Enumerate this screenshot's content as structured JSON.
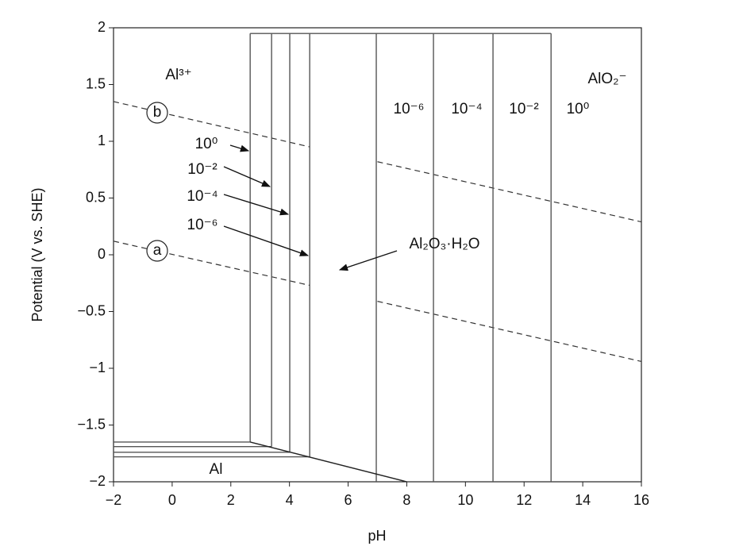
{
  "chart_data": {
    "type": "line",
    "x_label": "pH",
    "y_label": "Potential (V vs. SHE)",
    "xlim": [
      -2,
      16
    ],
    "ylim": [
      -2,
      2
    ],
    "xticks": [
      {
        "value": -2,
        "label": "−2"
      },
      0,
      2,
      4,
      6,
      8,
      10,
      12,
      14,
      16
    ],
    "yticks": [
      {
        "value": -2,
        "label": "−2"
      },
      {
        "value": -1.5,
        "label": "−1.5"
      },
      {
        "value": -1,
        "label": "−1"
      },
      {
        "value": -0.5,
        "label": "−0.5"
      },
      0,
      0.5,
      1,
      1.5,
      2
    ],
    "series": [
      {
        "x": [
          -2,
          4.7,
          5.8,
          7,
          16
        ],
        "values": [
          1.35,
          0.95,
          null,
          0.82,
          0.29
        ],
        "color": "#333333",
        "dash": true
      },
      {
        "x": [
          -2,
          4.7,
          5.8,
          7,
          16
        ],
        "values": [
          0.12,
          -0.27,
          null,
          -0.41,
          -0.94
        ],
        "color": "#333333",
        "dash": true
      },
      {
        "x": [
          2.66,
          2.66
        ],
        "values": [
          -1.65,
          1.95
        ],
        "color": "#555555",
        "dash": false
      },
      {
        "x": [
          3.39,
          3.39
        ],
        "values": [
          -1.69,
          1.95
        ],
        "color": "#555555",
        "dash": false
      },
      {
        "x": [
          4.01,
          4.01
        ],
        "values": [
          -1.74,
          1.95
        ],
        "color": "#555555",
        "dash": false
      },
      {
        "x": [
          4.69,
          4.69
        ],
        "values": [
          -1.78,
          1.95
        ],
        "color": "#555555",
        "dash": false
      },
      {
        "x": [
          6.96,
          6.96
        ],
        "values": [
          -2,
          1.95
        ],
        "color": "#555555",
        "dash": false
      },
      {
        "x": [
          8.91,
          8.91
        ],
        "values": [
          -2,
          1.95
        ],
        "color": "#555555",
        "dash": false
      },
      {
        "x": [
          10.94,
          10.94
        ],
        "values": [
          -2,
          1.95
        ],
        "color": "#555555",
        "dash": false
      },
      {
        "x": [
          12.92,
          12.92
        ],
        "values": [
          -2,
          1.95
        ],
        "color": "#555555",
        "dash": false
      },
      {
        "x": [
          2.66,
          12.92
        ],
        "values": [
          1.95,
          1.95
        ],
        "color": "#555555",
        "dash": false
      },
      {
        "x": [
          -2,
          2.66
        ],
        "values": [
          -1.65,
          -1.65
        ],
        "color": "#555555",
        "dash": false
      },
      {
        "x": [
          -2,
          3.39
        ],
        "values": [
          -1.69,
          -1.69
        ],
        "color": "#555555",
        "dash": false
      },
      {
        "x": [
          -2,
          4.01
        ],
        "values": [
          -1.74,
          -1.74
        ],
        "color": "#555555",
        "dash": false
      },
      {
        "x": [
          -2,
          4.69
        ],
        "values": [
          -1.78,
          -1.78
        ],
        "color": "#555555",
        "dash": false
      },
      {
        "x": [
          2.66,
          8
        ],
        "values": [
          -1.65,
          -2
        ],
        "color": "#222222",
        "dash": false
      }
    ],
    "annotations": [
      "Al³⁺",
      "AlO₂⁻",
      "10⁻⁶",
      "10⁻⁴",
      "10⁻²",
      "10⁰",
      "10⁰",
      "10⁻²",
      "10⁻⁴",
      "10⁻⁶",
      "Al₂O₃·H₂O",
      "Al",
      "b",
      "a"
    ]
  }
}
